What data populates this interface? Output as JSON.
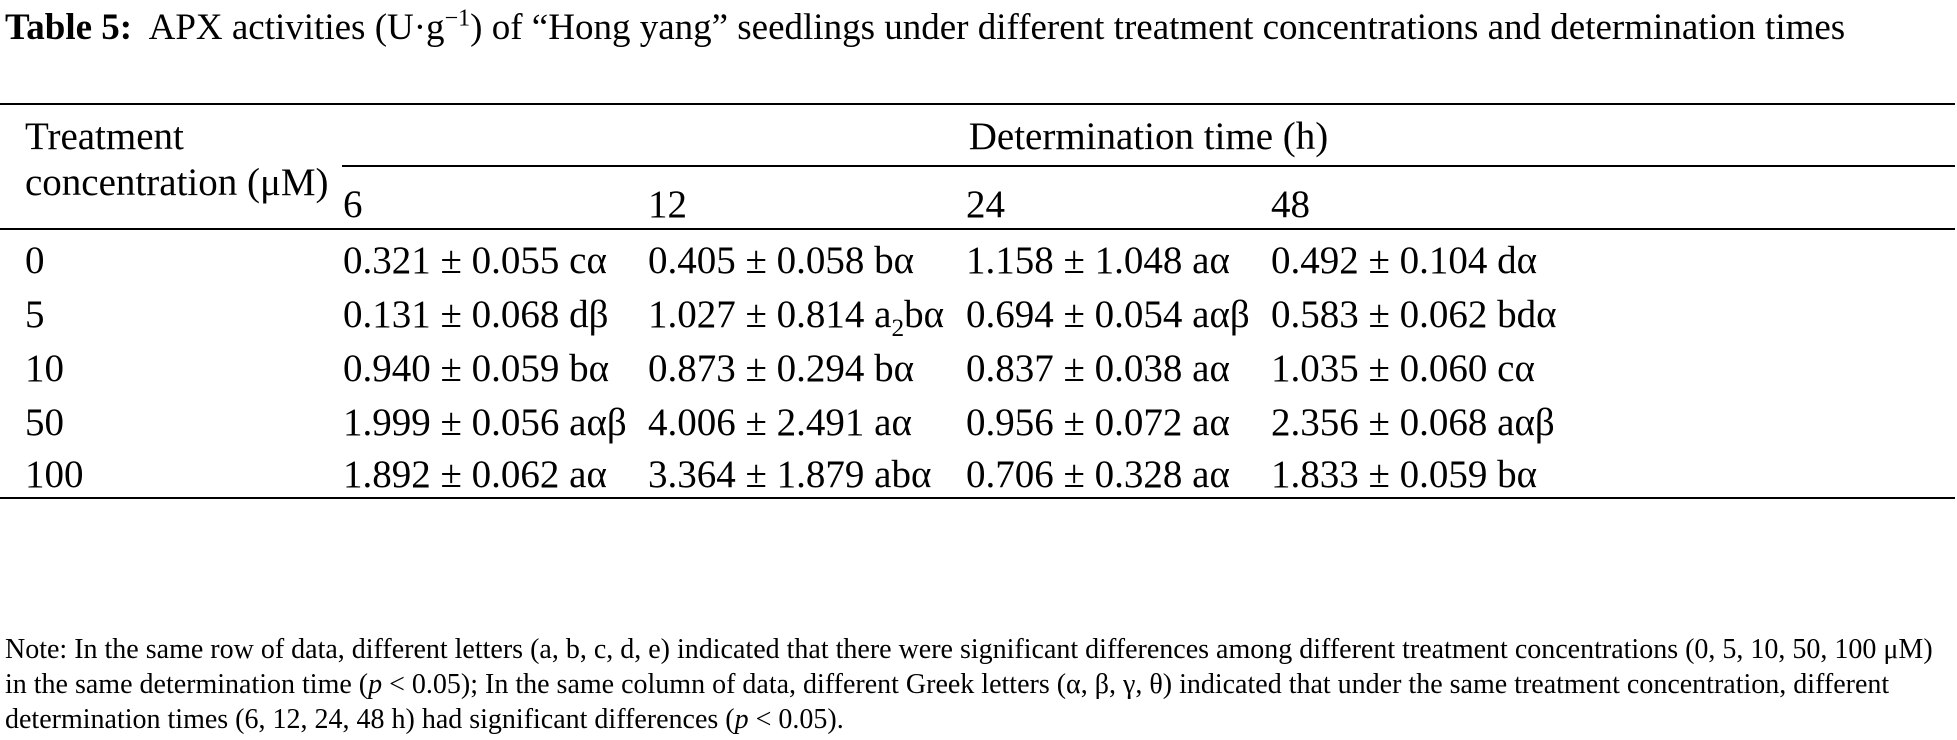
{
  "caption": {
    "label": "Table 5:",
    "text_before_sup": "APX activities (U·g",
    "sup": "−1",
    "text_after_sup": ") of “Hong yang” seedlings under different treatment concentrations and determination times"
  },
  "table": {
    "row_header_line1": "Treatment",
    "row_header_line2": "concentration (μM)",
    "group_header": "Determination time (h)",
    "columns": [
      "6",
      "12",
      "24",
      "48"
    ],
    "rows": [
      {
        "conc": "0",
        "values": [
          "0.321 ± 0.055 cα",
          "0.405 ± 0.058 bα",
          "1.158 ± 1.048 aα",
          "0.492 ± 0.104 dα"
        ]
      },
      {
        "conc": "5",
        "values": [
          "0.131 ± 0.068 dβ",
          "1.027 ± 0.814 a",
          "0.694 ± 0.054 aαβ",
          "0.583 ± 0.062 bdα"
        ],
        "special_sub": "2",
        "special_tail": "bα"
      },
      {
        "conc": "10",
        "values": [
          "0.940 ± 0.059 bα",
          "0.873 ± 0.294 bα",
          "0.837 ± 0.038 aα",
          "1.035 ± 0.060 cα"
        ]
      },
      {
        "conc": "50",
        "values": [
          "1.999 ± 0.056 aαβ",
          "4.006 ± 2.491 aα",
          "0.956 ± 0.072 aα",
          "2.356 ± 0.068 aαβ"
        ]
      },
      {
        "conc": "100",
        "values": [
          "1.892 ± 0.062 aα",
          "3.364 ± 1.879 abα",
          "0.706 ± 0.328 aα",
          "1.833 ± 0.059 bα"
        ]
      }
    ]
  },
  "note": {
    "part1": "Note: In the same row of data, different letters (a, b, c, d, e) indicated that there were significant differences among different treatment concentrations (0, 5, 10, 50, 100 μM) in the same determination time (",
    "p1": "p",
    "part2": " < 0.05); In the same column of data, different Greek letters (α, β, γ, θ) indicated that under the same treatment concentration, different determination times (6, 12, 24, 48 h) had significant differences (",
    "p2": "p",
    "part3": " < 0.05)."
  }
}
